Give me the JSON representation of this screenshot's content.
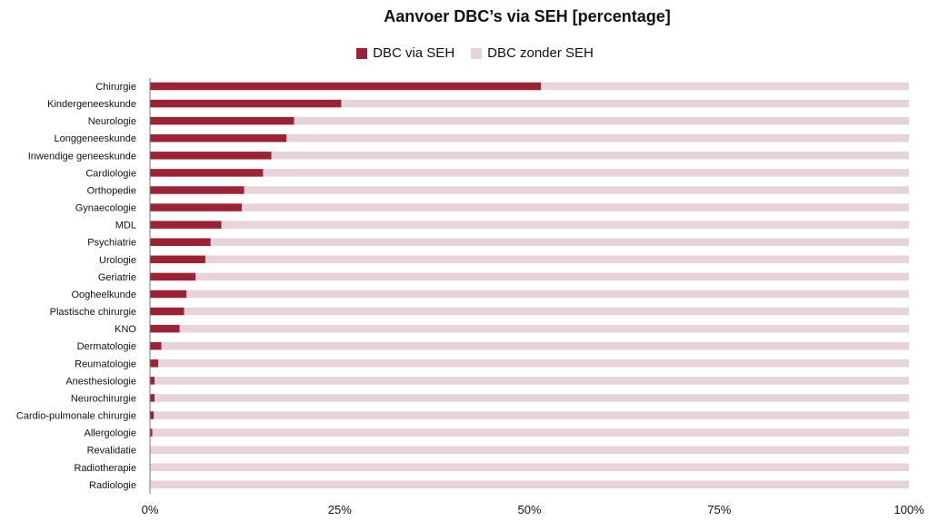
{
  "colors": {
    "series_via": "#9b2335",
    "series_zonder": "#e8d3d8",
    "axis": "#777777"
  },
  "chart_data": {
    "type": "bar",
    "orientation": "horizontal",
    "stacked": "percent",
    "title": "Aanvoer DBC’s via SEH [percentage]",
    "legend_position": "top",
    "xlim": [
      0,
      100
    ],
    "xticks": [
      "0%",
      "25%",
      "50%",
      "75%",
      "100%"
    ],
    "categories": [
      "Chirurgie",
      "Kindergeneeskunde",
      "Neurologie",
      "Longgeneeskunde",
      "Inwendige geneeskunde",
      "Cardiologie",
      "Orthopedie",
      "Gynaecologie",
      "MDL",
      "Psychiatrie",
      "Urologie",
      "Geriatrie",
      "Oogheelkunde",
      "Plastische chirurgie",
      "KNO",
      "Dermatologie",
      "Reumatologie",
      "Anesthesiologie",
      "Neurochirurgie",
      "Cardio-pulmonale chirurgie",
      "Allergologie",
      "Revalidatie",
      "Radiotherapie",
      "Radiologie"
    ],
    "series": [
      {
        "name": "DBC via SEH",
        "values": [
          51.5,
          25.2,
          19.0,
          18.0,
          16.0,
          14.9,
          12.4,
          12.1,
          9.4,
          8.0,
          7.3,
          6.0,
          4.8,
          4.5,
          3.9,
          1.5,
          1.1,
          0.6,
          0.6,
          0.5,
          0.3,
          0.0,
          0.0,
          0.0
        ]
      },
      {
        "name": "DBC zonder SEH",
        "values": [
          48.5,
          74.8,
          81.0,
          82.0,
          84.0,
          85.1,
          87.6,
          87.9,
          90.6,
          92.0,
          92.7,
          94.0,
          95.2,
          95.5,
          96.1,
          98.5,
          98.9,
          99.4,
          99.4,
          99.5,
          99.7,
          100.0,
          100.0,
          100.0
        ]
      }
    ]
  }
}
